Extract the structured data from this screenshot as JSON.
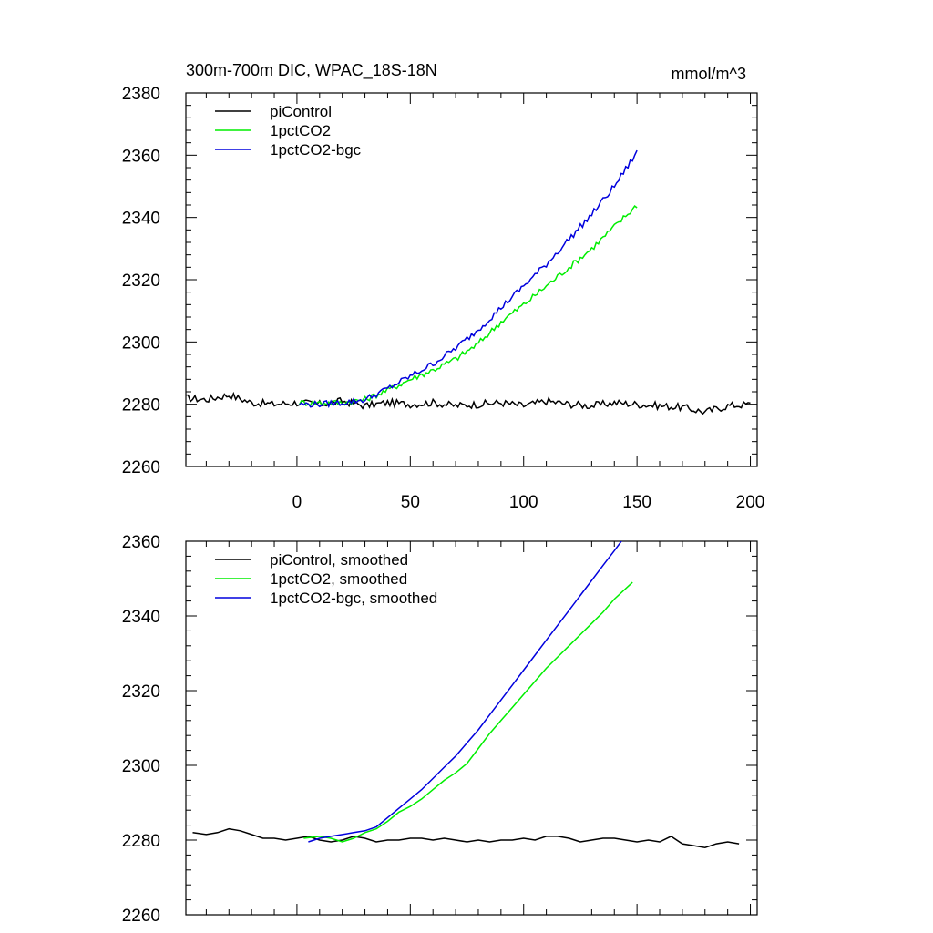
{
  "colors": {
    "piControl": "#000000",
    "1pctCO2": "#00ee00",
    "1pctCO2-bgc": "#0000dd"
  },
  "header": {
    "title": "300m-700m DIC, WPAC_18S-18N",
    "units": "mmol/m^3"
  },
  "chart_data": [
    {
      "type": "line",
      "title": "300m-700m DIC, WPAC_18S-18N",
      "units": "mmol/m^3",
      "xlim": [
        -49,
        203
      ],
      "ylim": [
        2260,
        2380
      ],
      "xticks": [
        0,
        50,
        100,
        150,
        200
      ],
      "xtick_labels": [
        "0",
        "50",
        "100",
        "150",
        "200"
      ],
      "yticks": [
        2260,
        2280,
        2300,
        2320,
        2340,
        2360,
        2380
      ],
      "ytick_labels": [
        "2260",
        "2280",
        "2300",
        "2320",
        "2340",
        "2360",
        "2380"
      ],
      "legend": "top-left",
      "grid": false,
      "series": [
        {
          "name": "piControl",
          "color": "#000000",
          "x": [
            -49,
            -40,
            -30,
            -20,
            -10,
            0,
            10,
            20,
            30,
            40,
            50,
            60,
            70,
            80,
            90,
            100,
            110,
            120,
            130,
            140,
            150,
            160,
            170,
            180,
            190,
            200
          ],
          "y": [
            2282,
            2281.5,
            2283,
            2280.5,
            2280,
            2280.5,
            2280,
            2281,
            2279.5,
            2280.5,
            2280,
            2280.5,
            2279.5,
            2280,
            2280.5,
            2279.5,
            2281,
            2280,
            2279.5,
            2280.5,
            2280,
            2279.5,
            2279,
            2277.5,
            2279.5,
            2280
          ],
          "noise": 1.2
        },
        {
          "name": "1pctCO2",
          "color": "#00ee00",
          "x": [
            1,
            10,
            20,
            30,
            40,
            50,
            60,
            70,
            80,
            90,
            100,
            110,
            120,
            130,
            140,
            150
          ],
          "y": [
            2280.5,
            2280.5,
            2280.5,
            2281.5,
            2284.5,
            2288,
            2291,
            2294.5,
            2299.5,
            2306.5,
            2312,
            2318,
            2324,
            2330,
            2337,
            2344
          ],
          "noise": 1.0
        },
        {
          "name": "1pctCO2-bgc",
          "color": "#0000dd",
          "x": [
            1,
            10,
            20,
            30,
            40,
            50,
            60,
            70,
            80,
            90,
            100,
            110,
            120,
            130,
            140,
            150
          ],
          "y": [
            2280,
            2280,
            2280.5,
            2281.5,
            2285,
            2289,
            2293,
            2298,
            2304,
            2311,
            2318,
            2325,
            2333,
            2341,
            2350,
            2361
          ],
          "noise": 1.0
        }
      ]
    },
    {
      "type": "line",
      "xlim": [
        -49,
        203
      ],
      "ylim": [
        2260,
        2360
      ],
      "xticks": [
        0,
        50,
        100,
        150,
        200
      ],
      "yticks": [
        2260,
        2280,
        2300,
        2320,
        2340,
        2360
      ],
      "ytick_labels": [
        "2260",
        "2280",
        "2300",
        "2320",
        "2340",
        "2360"
      ],
      "legend": "top-left",
      "grid": false,
      "series": [
        {
          "name": "piControl, smoothed",
          "color": "#000000",
          "x": [
            -46,
            -40,
            -35,
            -30,
            -25,
            -20,
            -15,
            -10,
            -5,
            0,
            5,
            10,
            15,
            20,
            25,
            30,
            35,
            40,
            45,
            50,
            55,
            60,
            65,
            70,
            75,
            80,
            85,
            90,
            95,
            100,
            105,
            110,
            115,
            120,
            125,
            130,
            135,
            140,
            145,
            150,
            155,
            160,
            165,
            170,
            175,
            180,
            185,
            190,
            195
          ],
          "y": [
            2282,
            2281.5,
            2282,
            2283,
            2282.5,
            2281.5,
            2280.5,
            2280.5,
            2280,
            2280.5,
            2281,
            2280,
            2279.5,
            2280,
            2281,
            2280.5,
            2279.5,
            2280,
            2280,
            2280.5,
            2280.5,
            2280,
            2280.5,
            2280,
            2279.5,
            2280,
            2279.5,
            2280,
            2280,
            2280.5,
            2280,
            2281,
            2281,
            2280.5,
            2279.5,
            2280,
            2280.5,
            2280.5,
            2280,
            2279.5,
            2280,
            2279.5,
            2281,
            2279,
            2278.5,
            2278,
            2279,
            2279.5,
            2279
          ]
        },
        {
          "name": "1pctCO2, smoothed",
          "color": "#00ee00",
          "x": [
            3,
            10,
            15,
            20,
            25,
            30,
            35,
            40,
            45,
            50,
            55,
            60,
            65,
            70,
            75,
            80,
            85,
            90,
            95,
            100,
            105,
            110,
            115,
            120,
            125,
            130,
            135,
            140,
            148
          ],
          "y": [
            2280.5,
            2281,
            2280.5,
            2279.5,
            2280.5,
            2282,
            2283,
            2285,
            2287.5,
            2289,
            2291,
            2293.5,
            2296,
            2298,
            2300.5,
            2304.5,
            2308.5,
            2312,
            2315.5,
            2319,
            2322.5,
            2326,
            2329,
            2332,
            2335,
            2338,
            2341,
            2344.5,
            2349
          ]
        },
        {
          "name": "1pctCO2-bgc, smoothed",
          "color": "#0000dd",
          "x": [
            5,
            10,
            15,
            20,
            25,
            30,
            35,
            40,
            45,
            50,
            55,
            60,
            65,
            70,
            75,
            80,
            85,
            90,
            95,
            100,
            105,
            110,
            115,
            120,
            125,
            130,
            135,
            140,
            148
          ],
          "y": [
            2279.5,
            2280.5,
            2281,
            2281.5,
            2282,
            2282.5,
            2283.5,
            2286,
            2288.5,
            2291,
            2293.5,
            2296.5,
            2299.5,
            2302.5,
            2306,
            2309.5,
            2313.5,
            2317.5,
            2321.5,
            2325.5,
            2329.5,
            2333.5,
            2337.5,
            2341.5,
            2345.5,
            2349.5,
            2353.5,
            2357.5,
            2364
          ]
        }
      ]
    }
  ]
}
